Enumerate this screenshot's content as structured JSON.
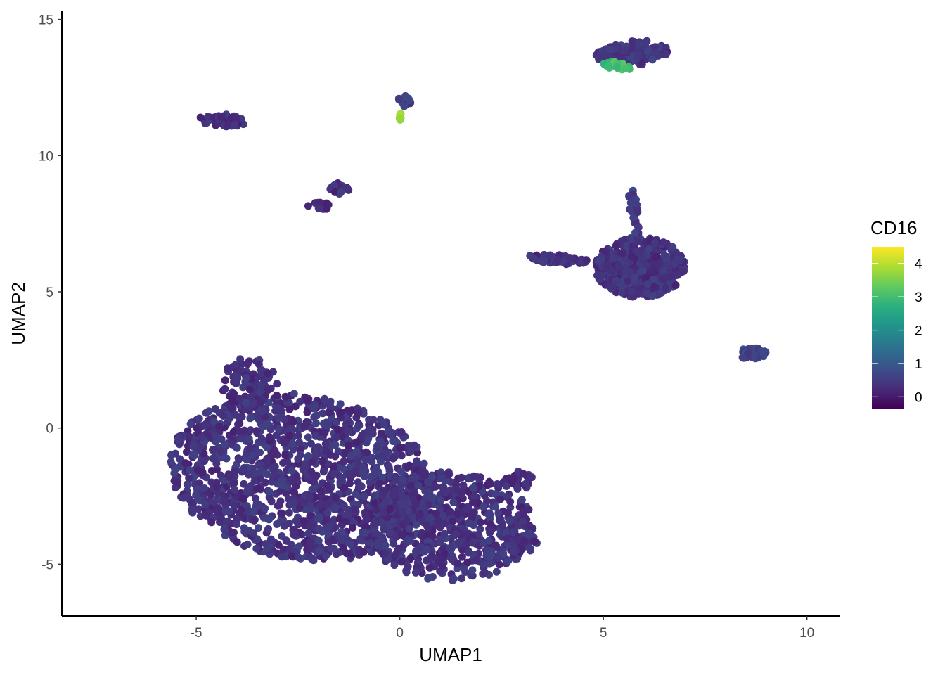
{
  "chart_data": {
    "type": "scatter",
    "title": "",
    "xlabel": "UMAP1",
    "ylabel": "UMAP2",
    "xlim": [
      -8.3,
      10.8
    ],
    "ylim": [
      -6.9,
      15.3
    ],
    "x_ticks": [
      -5,
      0,
      5,
      10
    ],
    "x_tick_labels": [
      "-5",
      "0",
      "5",
      "10"
    ],
    "y_ticks": [
      -5,
      0,
      5,
      10,
      15
    ],
    "y_tick_labels": [
      "-5",
      "0",
      "5",
      "10",
      "15"
    ],
    "grid": false,
    "legend": {
      "title": "CD16",
      "placement": "right",
      "min": -0.35,
      "max": 4.5,
      "ticks": [
        0,
        1,
        2,
        3,
        4
      ],
      "tick_labels": [
        "0",
        "1",
        "2",
        "3",
        "4"
      ],
      "colormap": [
        "#440154",
        "#472d7b",
        "#3b528b",
        "#2c728e",
        "#21918c",
        "#28ae80",
        "#5ec962",
        "#addc30",
        "#fde725"
      ]
    },
    "clusters": [
      {
        "name": "main-left",
        "ellipse": [
          -2.4,
          -1.8,
          3.4,
          2.9,
          -35
        ],
        "n": 1400,
        "value": 0.35
      },
      {
        "name": "main-upper-lobe",
        "ellipse": [
          -3.7,
          1.7,
          0.7,
          0.9,
          0
        ],
        "n": 90,
        "value": 0.35
      },
      {
        "name": "main-right",
        "ellipse": [
          1.2,
          -3.6,
          2.1,
          2.0,
          -20
        ],
        "n": 650,
        "value": 0.35
      },
      {
        "name": "main-right-tip",
        "ellipse": [
          3.0,
          -4.2,
          0.4,
          0.4,
          0
        ],
        "n": 50,
        "value": 0.35
      },
      {
        "name": "small-tail",
        "ellipse": [
          2.9,
          -1.9,
          0.45,
          0.35,
          0
        ],
        "n": 25,
        "value": 0.3
      },
      {
        "name": "island-top-left",
        "ellipse": [
          -4.4,
          11.3,
          0.6,
          0.25,
          -10
        ],
        "n": 60,
        "value": 0.3
      },
      {
        "name": "island-diagonal-a",
        "ellipse": [
          -1.95,
          8.15,
          0.3,
          0.15,
          0
        ],
        "n": 20,
        "value": 0.3
      },
      {
        "name": "island-diagonal-b",
        "ellipse": [
          -1.45,
          8.85,
          0.28,
          0.25,
          45
        ],
        "n": 18,
        "value": 0.3
      },
      {
        "name": "island-top-center",
        "ellipse": [
          0.1,
          12.0,
          0.18,
          0.2,
          0
        ],
        "n": 14,
        "value": 0.5
      },
      {
        "name": "island-top-center-bright",
        "ellipse": [
          0.02,
          11.4,
          0.08,
          0.2,
          0
        ],
        "n": 8,
        "value": 3.8
      },
      {
        "name": "island-top-right",
        "ellipse": [
          5.7,
          13.75,
          0.9,
          0.45,
          10
        ],
        "n": 150,
        "value": 0.4
      },
      {
        "name": "island-top-right-green",
        "ellipse": [
          5.35,
          13.3,
          0.35,
          0.15,
          -15
        ],
        "n": 25,
        "value": 3.0
      },
      {
        "name": "right-mass",
        "ellipse": [
          5.9,
          5.9,
          1.1,
          1.1,
          0
        ],
        "n": 450,
        "value": 0.35
      },
      {
        "name": "right-mass-arm",
        "ellipse": [
          3.9,
          6.2,
          0.75,
          0.18,
          -8
        ],
        "n": 60,
        "value": 0.35
      },
      {
        "name": "right-mass-stalk",
        "ellipse": [
          5.75,
          7.9,
          0.12,
          0.9,
          5
        ],
        "n": 30,
        "value": 0.5
      },
      {
        "name": "island-far-right",
        "ellipse": [
          8.65,
          2.75,
          0.35,
          0.22,
          0
        ],
        "n": 60,
        "value": 0.6
      }
    ]
  }
}
